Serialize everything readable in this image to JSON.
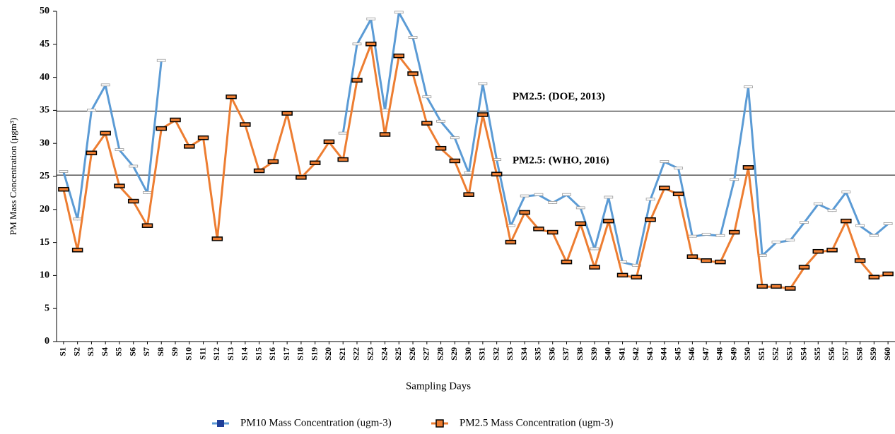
{
  "chart_data": {
    "type": "line",
    "x_label": "Sampling Days",
    "y_label": "PM Mass Concentration (µgm³)",
    "categories": [
      "S1",
      "S2",
      "S3",
      "S4",
      "S5",
      "S6",
      "S7",
      "S8",
      "S9",
      "S10",
      "S11",
      "S12",
      "S13",
      "S14",
      "S15",
      "S16",
      "S17",
      "S18",
      "S19",
      "S20",
      "S21",
      "S22",
      "S23",
      "S24",
      "S25",
      "S26",
      "S27",
      "S28",
      "S29",
      "S30",
      "S31",
      "S32",
      "S33",
      "S34",
      "S35",
      "S36",
      "S37",
      "S38",
      "S39",
      "S40",
      "S41",
      "S42",
      "S43",
      "S44",
      "S45",
      "S46",
      "S47",
      "S48",
      "S49",
      "S50",
      "S51",
      "S52",
      "S53",
      "S54",
      "S55",
      "S56",
      "S57",
      "S58",
      "S59",
      "S60"
    ],
    "series": [
      {
        "name": "PM10 Mass Concentration (ugm-3)",
        "color": "#5b9bd5",
        "values": [
          25.7,
          18.5,
          35,
          38.8,
          29,
          26.5,
          22.5,
          42.5,
          null,
          null,
          null,
          null,
          null,
          null,
          null,
          null,
          null,
          null,
          null,
          null,
          31.5,
          45,
          48.8,
          35,
          49.8,
          46,
          37,
          33.3,
          30.8,
          25.5,
          39,
          27.5,
          17.5,
          22,
          22.2,
          21,
          22.2,
          20.2,
          14,
          21.8,
          12,
          11.5,
          21.5,
          27.2,
          26.2,
          15.9,
          16.2,
          16,
          24.5,
          38.5,
          13,
          15,
          15.3,
          18,
          20.8,
          19.8,
          22.6,
          17.5,
          16,
          17.8
        ]
      },
      {
        "name": "PM2.5 Mass Concentration (ugm-3)",
        "color": "#ed7d31",
        "values": [
          23,
          13.8,
          28.5,
          31.5,
          23.5,
          21.2,
          17.5,
          32.2,
          33.5,
          29.5,
          30.8,
          15.5,
          37,
          32.8,
          25.8,
          27.2,
          34.5,
          24.8,
          27,
          30.2,
          27.5,
          39.5,
          45,
          31.3,
          43.2,
          40.5,
          33,
          29.2,
          27.3,
          22.2,
          34.3,
          25.3,
          15,
          19.5,
          17,
          16.5,
          12,
          17.8,
          11.2,
          18.2,
          10,
          9.7,
          18.4,
          23.2,
          22.3,
          12.8,
          12.2,
          12,
          16.5,
          26.3,
          8.3,
          8.3,
          8,
          11.2,
          13.6,
          13.8,
          18.2,
          12.2,
          9.7,
          10.2
        ]
      }
    ],
    "reference_lines": [
      {
        "label": "PM2.5: (DOE, 2013)",
        "value": 34.9
      },
      {
        "label": "PM2.5: (WHO, 2016)",
        "value": 25.2
      }
    ],
    "ylim": [
      0,
      50
    ],
    "yticks": [
      0,
      5,
      10,
      15,
      20,
      25,
      30,
      35,
      40,
      45,
      50
    ]
  }
}
